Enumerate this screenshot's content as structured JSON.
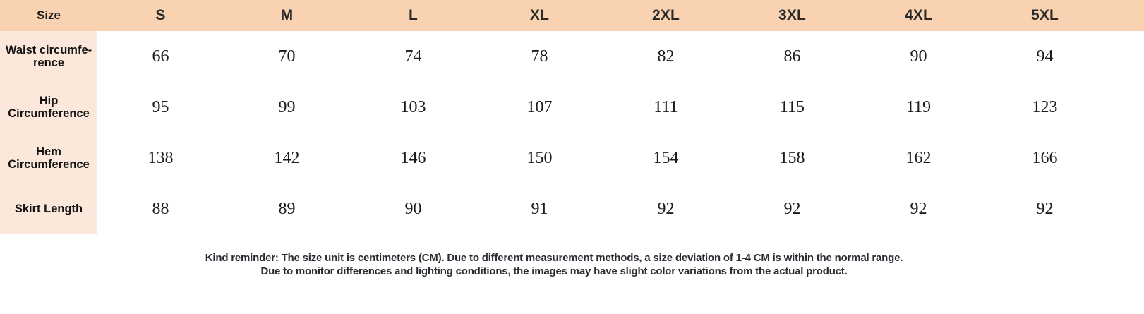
{
  "chart_data": {
    "type": "table",
    "header": {
      "label": "Size",
      "sizes": [
        "S",
        "M",
        "L",
        "XL",
        "2XL",
        "3XL",
        "4XL",
        "5XL"
      ]
    },
    "rows": [
      {
        "label": "Waist circumfe-\nrence",
        "values": [
          66,
          70,
          74,
          78,
          82,
          86,
          90,
          94
        ]
      },
      {
        "label": "Hip Circumference",
        "values": [
          95,
          99,
          103,
          107,
          111,
          115,
          119,
          123
        ]
      },
      {
        "label": "Hem Circumference",
        "values": [
          138,
          142,
          146,
          150,
          154,
          158,
          162,
          166
        ]
      },
      {
        "label": "Skirt Length",
        "values": [
          88,
          89,
          90,
          91,
          92,
          92,
          92,
          92
        ]
      }
    ]
  },
  "note": {
    "line1": "Kind reminder: The size unit is centimeters (CM). Due to different measurement methods, a size deviation of 1-4 CM is within the normal range.",
    "line2": "Due to monitor differences and lighting conditions, the images may have slight color variations from the actual product."
  },
  "colors": {
    "header_bg": "#f9d3b1",
    "label_col_bg": "#fbe8da",
    "text_dark": "#1f1f1f",
    "note_color": "#2b2b33"
  }
}
